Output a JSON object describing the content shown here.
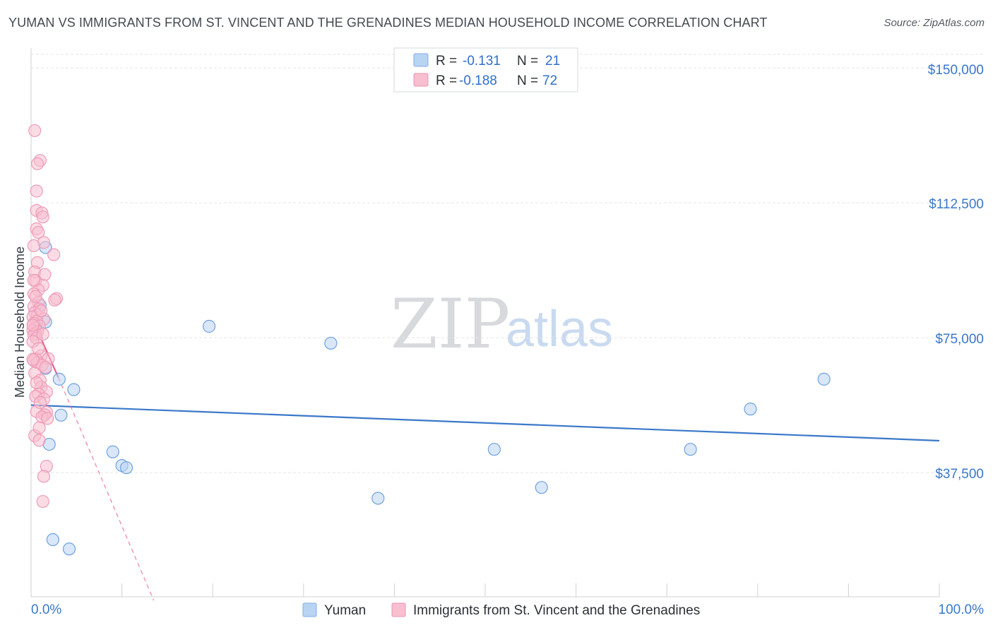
{
  "header": {
    "title": "YUMAN VS IMMIGRANTS FROM ST. VINCENT AND THE GRENADINES MEDIAN HOUSEHOLD INCOME CORRELATION CHART",
    "source": "Source: ZipAtlas.com"
  },
  "watermark": {
    "zip": "ZIP",
    "atlas": "atlas"
  },
  "colors": {
    "blue": "#3a78c9",
    "blue_fill": "#b9d3f3",
    "pink": "#e8608c",
    "pink_fill": "#f7bfd0",
    "grid": "#e3e5e8",
    "axis_text": "#3a78c9"
  },
  "legend_box": {
    "rows": [
      {
        "r_label": "R =",
        "r_value": "-0.131",
        "n_label": "N =",
        "n_value": "21"
      },
      {
        "r_label": "R =",
        "r_value": "-0.188",
        "n_label": "N =",
        "n_value": "72"
      }
    ]
  },
  "chart_data": {
    "type": "scatter",
    "title": "YUMAN VS IMMIGRANTS FROM ST. VINCENT AND THE GRENADINES MEDIAN HOUSEHOLD INCOME CORRELATION CHART",
    "xlabel": "",
    "ylabel": "Median Household Income",
    "xlim": [
      0,
      100
    ],
    "ylim": [
      0,
      153000
    ],
    "x_tick_labels": [
      "0.0%",
      "100.0%"
    ],
    "y_ticks": [
      37500,
      75000,
      112500,
      150000
    ],
    "y_tick_labels": [
      "$37,500",
      "$75,000",
      "$112,500",
      "$150,000"
    ],
    "grid": true,
    "legend_position": "top-center",
    "series": [
      {
        "name": "Yuman",
        "r": -0.131,
        "n": 21,
        "trend": {
          "x": [
            0,
            100
          ],
          "y": [
            56300,
            46400
          ],
          "style": "solid"
        },
        "points": [
          [
            1.6,
            100100
          ],
          [
            1.6,
            66500
          ],
          [
            3.1,
            63500
          ],
          [
            4.7,
            60600
          ],
          [
            3.3,
            53500
          ],
          [
            2.0,
            45400
          ],
          [
            1.6,
            79400
          ],
          [
            9.0,
            43300
          ],
          [
            10.0,
            39500
          ],
          [
            10.5,
            38900
          ],
          [
            2.4,
            18900
          ],
          [
            4.2,
            16300
          ],
          [
            19.6,
            78200
          ],
          [
            33.0,
            73500
          ],
          [
            38.2,
            30400
          ],
          [
            51.0,
            44000
          ],
          [
            56.2,
            33400
          ],
          [
            72.6,
            44000
          ],
          [
            79.2,
            55200
          ],
          [
            87.3,
            63500
          ],
          [
            1.0,
            84000
          ]
        ]
      },
      {
        "name": "Immigrants from St. Vincent and the Grenadines",
        "r": -0.188,
        "n": 72,
        "trend": {
          "x": [
            0,
            3.0,
            13.5
          ],
          "y": [
            81000,
            64000,
            2000
          ],
          "style": "solid-then-dashed",
          "solid_until_x": 3.0
        },
        "points": [
          [
            0.4,
            132600
          ],
          [
            1.0,
            124300
          ],
          [
            0.7,
            123400
          ],
          [
            0.6,
            115800
          ],
          [
            0.6,
            110400
          ],
          [
            1.2,
            109700
          ],
          [
            1.3,
            108600
          ],
          [
            0.6,
            105300
          ],
          [
            0.8,
            104300
          ],
          [
            1.4,
            101500
          ],
          [
            0.3,
            100600
          ],
          [
            2.5,
            98100
          ],
          [
            0.7,
            95900
          ],
          [
            0.4,
            93300
          ],
          [
            1.5,
            92600
          ],
          [
            0.5,
            90900
          ],
          [
            1.3,
            89600
          ],
          [
            0.8,
            88300
          ],
          [
            0.3,
            87200
          ],
          [
            2.8,
            85900
          ],
          [
            2.6,
            85500
          ],
          [
            0.8,
            84800
          ],
          [
            0.3,
            83700
          ],
          [
            0.9,
            83000
          ],
          [
            0.4,
            82000
          ],
          [
            0.7,
            81300
          ],
          [
            0.2,
            80800
          ],
          [
            1.4,
            80200
          ],
          [
            0.6,
            79600
          ],
          [
            0.3,
            79000
          ],
          [
            0.9,
            78300
          ],
          [
            0.4,
            77700
          ],
          [
            0.2,
            77100
          ],
          [
            0.7,
            76700
          ],
          [
            0.5,
            76200
          ],
          [
            0.3,
            75800
          ],
          [
            0.6,
            74900
          ],
          [
            0.2,
            74000
          ],
          [
            1.1,
            70000
          ],
          [
            0.5,
            69200
          ],
          [
            1.9,
            69200
          ],
          [
            0.3,
            68700
          ],
          [
            0.7,
            68100
          ],
          [
            1.2,
            67400
          ],
          [
            1.6,
            66800
          ],
          [
            0.4,
            65200
          ],
          [
            1.0,
            63200
          ],
          [
            1.1,
            61300
          ],
          [
            1.7,
            60000
          ],
          [
            0.8,
            59400
          ],
          [
            0.5,
            58700
          ],
          [
            1.4,
            58000
          ],
          [
            0.6,
            54500
          ],
          [
            1.7,
            54300
          ],
          [
            1.5,
            53600
          ],
          [
            1.2,
            53000
          ],
          [
            1.8,
            52600
          ],
          [
            0.4,
            47800
          ],
          [
            0.9,
            46500
          ],
          [
            1.7,
            39300
          ],
          [
            1.4,
            36500
          ],
          [
            1.3,
            29500
          ],
          [
            0.2,
            69000
          ],
          [
            0.8,
            72000
          ],
          [
            1.0,
            57000
          ],
          [
            0.5,
            86500
          ],
          [
            0.3,
            91000
          ],
          [
            1.1,
            82500
          ],
          [
            0.6,
            62500
          ],
          [
            0.9,
            50000
          ],
          [
            0.2,
            78500
          ],
          [
            1.3,
            76000
          ]
        ]
      }
    ]
  },
  "bottom_legend": {
    "items": [
      {
        "label": "Yuman"
      },
      {
        "label": "Immigrants from St. Vincent and the Grenadines"
      }
    ]
  }
}
